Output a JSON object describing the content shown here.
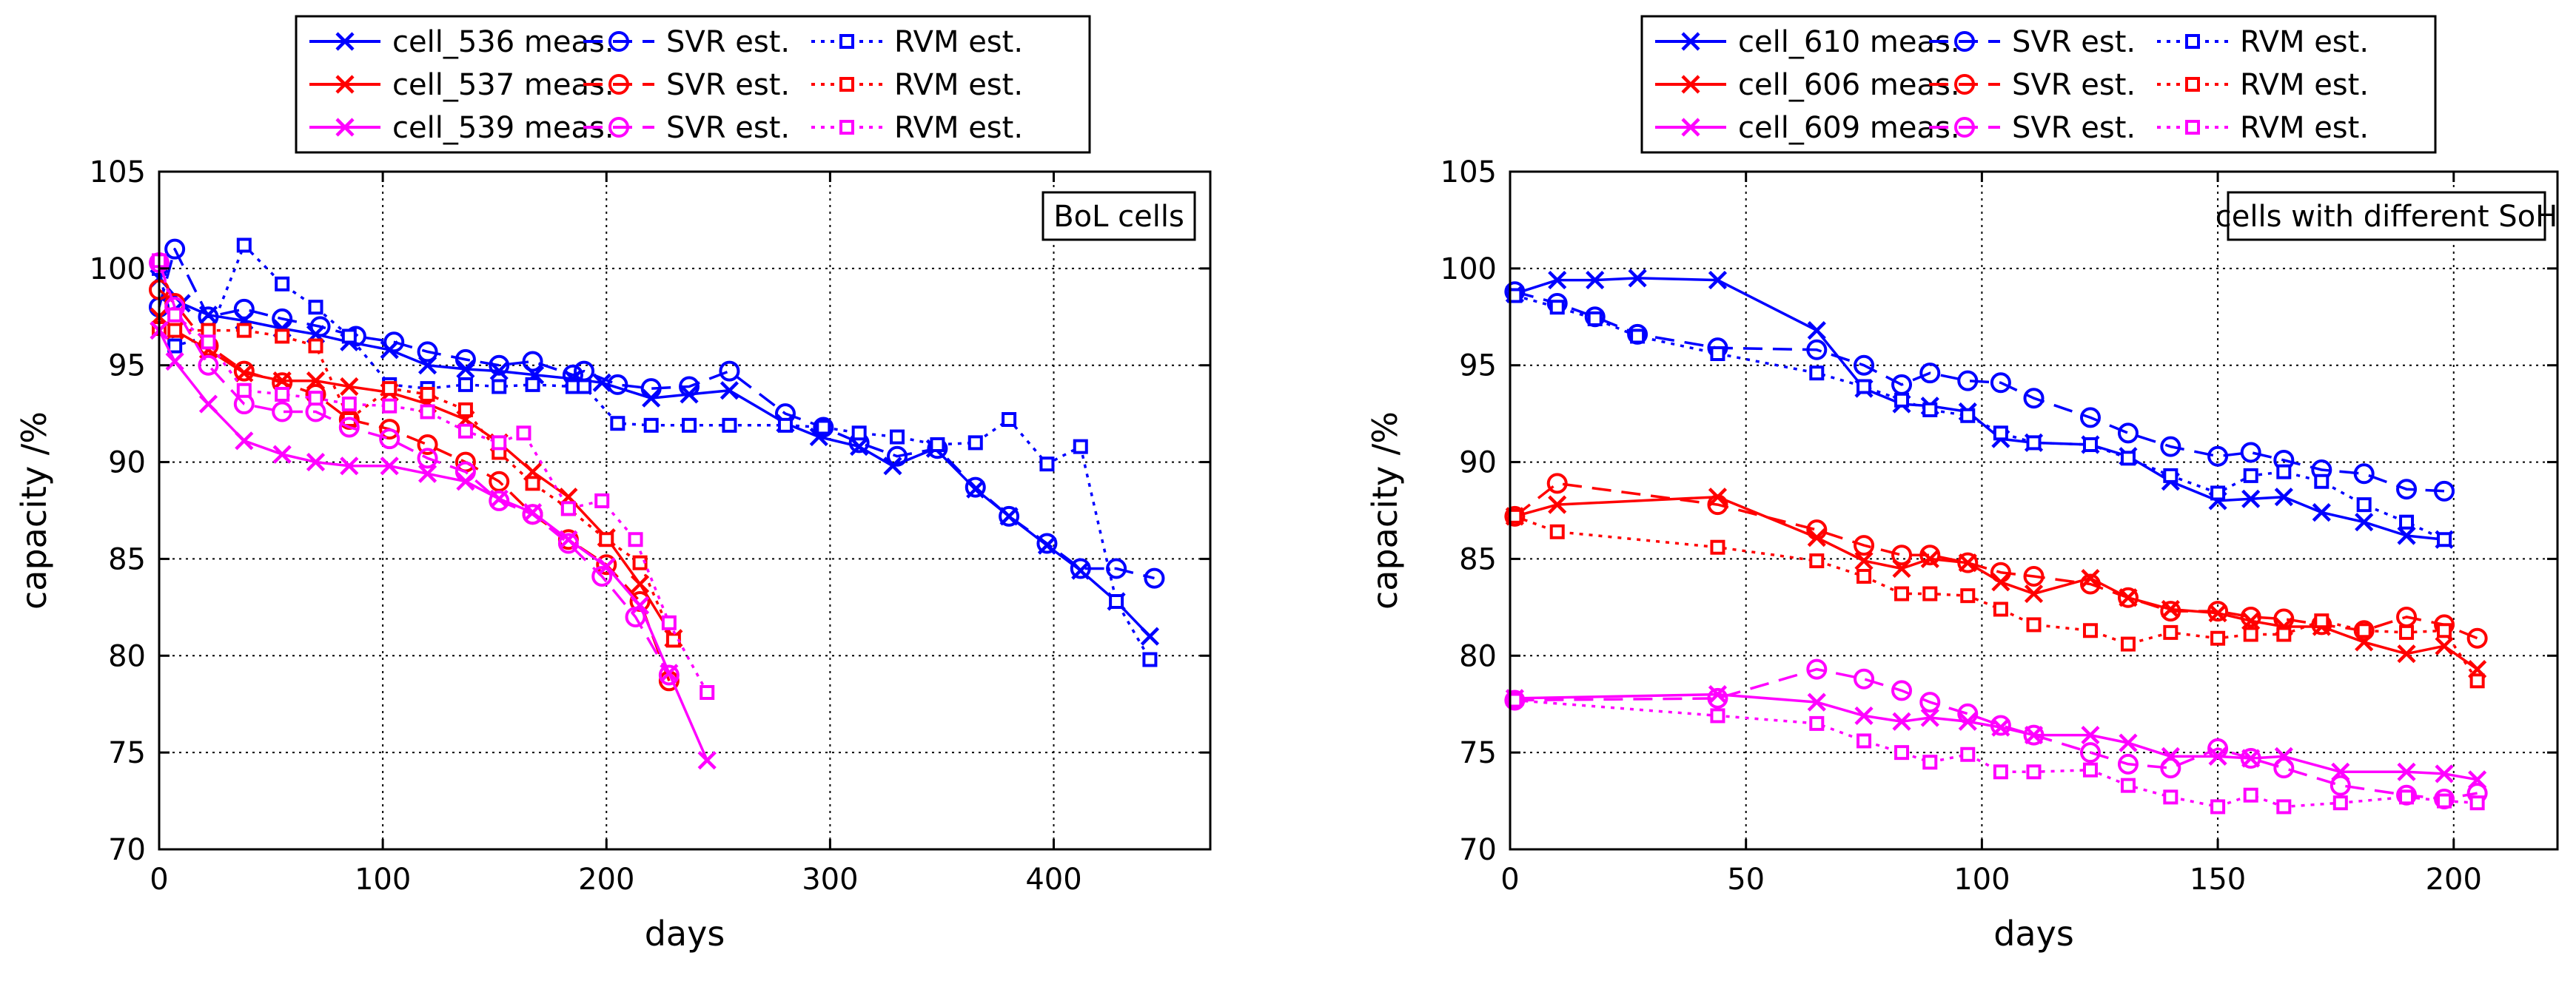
{
  "chart_data": [
    {
      "type": "line",
      "annotation": "BoL cells",
      "xlabel": "days",
      "ylabel": "capacity /%",
      "xlim": [
        0,
        470
      ],
      "ylim": [
        70,
        105
      ],
      "xticks": [
        0,
        100,
        200,
        300,
        400
      ],
      "yticks": [
        70,
        75,
        80,
        85,
        90,
        95,
        100,
        105
      ],
      "grid": true,
      "legend_position": "top",
      "series": [
        {
          "name": "cell_536 meas.",
          "color": "#0000ff",
          "dash": "solid",
          "marker": "x",
          "x": [
            0,
            10,
            22,
            38,
            55,
            70,
            85,
            103,
            120,
            137,
            152,
            168,
            185,
            198,
            220,
            237,
            255,
            280,
            295,
            313,
            328,
            347,
            365,
            380,
            397,
            412,
            428,
            443
          ],
          "y": [
            99.5,
            98.2,
            97.6,
            97.3,
            96.9,
            96.6,
            96.2,
            95.8,
            95.0,
            94.8,
            94.7,
            94.5,
            94.3,
            94.1,
            93.3,
            93.5,
            93.7,
            92.0,
            91.3,
            90.8,
            89.8,
            90.7,
            88.6,
            87.2,
            85.7,
            84.4,
            82.8,
            81.0
          ]
        },
        {
          "name": "SVR est.",
          "color": "#0000ff",
          "dash": "dashed",
          "marker": "o",
          "x": [
            0,
            7,
            22,
            38,
            55,
            72,
            88,
            105,
            120,
            137,
            152,
            167,
            185,
            190,
            205,
            220,
            237,
            255,
            280,
            297,
            313,
            330,
            348,
            365,
            380,
            397,
            412,
            428,
            445
          ],
          "y": [
            98.0,
            101.0,
            97.5,
            97.9,
            97.4,
            97.0,
            96.5,
            96.2,
            95.7,
            95.3,
            95.0,
            95.2,
            94.5,
            94.7,
            94.0,
            93.8,
            93.9,
            94.7,
            92.5,
            91.8,
            91.0,
            90.3,
            90.7,
            88.7,
            87.2,
            85.8,
            84.5,
            84.5,
            84.0
          ]
        },
        {
          "name": "RVM est.",
          "color": "#0000ff",
          "dash": "dotted",
          "marker": "s",
          "x": [
            0,
            7,
            22,
            38,
            55,
            70,
            85,
            103,
            120,
            137,
            152,
            167,
            185,
            190,
            205,
            220,
            237,
            255,
            280,
            297,
            313,
            330,
            348,
            365,
            380,
            397,
            412,
            428,
            443
          ],
          "y": [
            100.0,
            96.0,
            96.5,
            101.2,
            99.2,
            98.0,
            96.5,
            94.0,
            93.8,
            94.0,
            93.9,
            94.0,
            93.9,
            93.9,
            92.0,
            91.9,
            91.9,
            91.9,
            91.9,
            91.8,
            91.5,
            91.3,
            90.9,
            91.0,
            92.2,
            89.9,
            90.8,
            82.8,
            79.8
          ]
        },
        {
          "name": "cell_537 meas.",
          "color": "#ff0000",
          "dash": "solid",
          "marker": "x",
          "x": [
            0,
            7,
            22,
            38,
            55,
            70,
            85,
            103,
            120,
            137,
            152,
            167,
            183,
            200,
            215,
            230
          ],
          "y": [
            97.5,
            96.8,
            95.8,
            94.6,
            94.2,
            94.2,
            93.9,
            93.6,
            93.0,
            92.2,
            91.0,
            89.5,
            88.2,
            86.1,
            83.7,
            80.9
          ]
        },
        {
          "name": "SVR est.",
          "color": "#ff0000",
          "dash": "dashed",
          "marker": "o",
          "x": [
            0,
            7,
            22,
            38,
            55,
            70,
            85,
            103,
            120,
            137,
            152,
            167,
            183,
            200,
            215,
            228
          ],
          "y": [
            98.9,
            98.2,
            96.0,
            94.7,
            94.1,
            93.5,
            92.2,
            91.7,
            90.9,
            90.0,
            89.0,
            87.3,
            86.0,
            84.7,
            82.8,
            78.7
          ]
        },
        {
          "name": "RVM est.",
          "color": "#ff0000",
          "dash": "dotted",
          "marker": "s",
          "x": [
            0,
            7,
            22,
            38,
            55,
            70,
            85,
            103,
            120,
            137,
            152,
            167,
            183,
            200,
            215,
            230
          ],
          "y": [
            96.9,
            96.8,
            96.8,
            96.8,
            96.5,
            96.0,
            92.2,
            93.8,
            93.5,
            92.7,
            90.5,
            88.9,
            87.6,
            86.0,
            84.8,
            80.8
          ]
        },
        {
          "name": "cell_539 meas.",
          "color": "#ff00ff",
          "dash": "solid",
          "marker": "x",
          "x": [
            0,
            7,
            22,
            38,
            55,
            70,
            85,
            103,
            120,
            137,
            152,
            167,
            183,
            200,
            215,
            228,
            245
          ],
          "y": [
            96.8,
            95.2,
            93.0,
            91.1,
            90.4,
            90.0,
            89.8,
            89.8,
            89.4,
            89.0,
            88.1,
            87.4,
            86.0,
            84.6,
            82.6,
            79.1,
            74.6
          ]
        },
        {
          "name": "SVR est.",
          "color": "#ff00ff",
          "dash": "dashed",
          "marker": "o",
          "x": [
            0,
            7,
            22,
            38,
            55,
            70,
            85,
            103,
            120,
            137,
            152,
            167,
            183,
            198,
            213,
            228
          ],
          "y": [
            100.3,
            98.0,
            95.0,
            93.0,
            92.6,
            92.6,
            91.8,
            91.2,
            90.2,
            89.5,
            88.0,
            87.3,
            85.8,
            84.1,
            82.0,
            79.0
          ]
        },
        {
          "name": "RVM est.",
          "color": "#ff00ff",
          "dash": "dotted",
          "marker": "s",
          "x": [
            0,
            7,
            22,
            38,
            55,
            70,
            85,
            103,
            120,
            137,
            152,
            163,
            183,
            198,
            213,
            228,
            245
          ],
          "y": [
            100.4,
            97.6,
            96.2,
            93.7,
            93.5,
            93.3,
            93.0,
            92.9,
            92.6,
            91.6,
            91.0,
            91.5,
            87.6,
            88.0,
            86.0,
            81.7,
            78.1
          ]
        }
      ]
    },
    {
      "type": "line",
      "annotation": "cells with different SoH",
      "xlabel": "days",
      "ylabel": "capacity /%",
      "xlim": [
        0,
        222
      ],
      "ylim": [
        70,
        105
      ],
      "xticks": [
        0,
        50,
        100,
        150,
        200
      ],
      "yticks": [
        70,
        75,
        80,
        85,
        90,
        95,
        100,
        105
      ],
      "grid": true,
      "legend_position": "top",
      "series": [
        {
          "name": "cell_610 meas.",
          "color": "#0000ff",
          "dash": "solid",
          "marker": "x",
          "x": [
            1,
            10,
            18,
            27,
            44,
            65,
            75,
            83,
            89,
            97,
            104,
            111,
            123,
            131,
            140,
            150,
            157,
            164,
            172,
            181,
            190,
            198
          ],
          "y": [
            98.7,
            99.4,
            99.4,
            99.5,
            99.4,
            96.8,
            93.8,
            93.0,
            92.9,
            92.6,
            91.2,
            91.0,
            90.9,
            90.3,
            89.0,
            88.0,
            88.1,
            88.2,
            87.4,
            86.9,
            86.2,
            86.0
          ]
        },
        {
          "name": "SVR est.",
          "color": "#0000ff",
          "dash": "dashed",
          "marker": "o",
          "x": [
            1,
            10,
            18,
            27,
            44,
            65,
            75,
            83,
            89,
            97,
            104,
            111,
            123,
            131,
            140,
            150,
            157,
            164,
            172,
            181,
            190,
            198
          ],
          "y": [
            98.8,
            98.2,
            97.5,
            96.6,
            95.9,
            95.8,
            95.0,
            94.0,
            94.6,
            94.2,
            94.1,
            93.3,
            92.3,
            91.5,
            90.8,
            90.3,
            90.5,
            90.1,
            89.6,
            89.4,
            88.6,
            88.5
          ]
        },
        {
          "name": "RVM est.",
          "color": "#0000ff",
          "dash": "dotted",
          "marker": "s",
          "x": [
            1,
            10,
            18,
            27,
            44,
            65,
            75,
            83,
            89,
            97,
            104,
            111,
            123,
            131,
            140,
            150,
            157,
            164,
            172,
            181,
            190,
            198
          ],
          "y": [
            98.6,
            98.0,
            97.4,
            96.5,
            95.6,
            94.6,
            93.9,
            93.2,
            92.7,
            92.4,
            91.5,
            91.0,
            90.9,
            90.2,
            89.3,
            88.4,
            89.3,
            89.5,
            89.0,
            87.8,
            86.9,
            86.0
          ]
        },
        {
          "name": "cell_606 meas.",
          "color": "#ff0000",
          "dash": "solid",
          "marker": "x",
          "x": [
            1,
            10,
            44,
            65,
            75,
            83,
            89,
            97,
            104,
            111,
            123,
            131,
            140,
            150,
            157,
            164,
            172,
            181,
            190,
            198,
            205
          ],
          "y": [
            87.2,
            87.8,
            88.2,
            86.1,
            84.9,
            84.5,
            85.0,
            84.8,
            83.8,
            83.2,
            84.0,
            83.0,
            82.4,
            82.2,
            81.8,
            81.5,
            81.5,
            80.7,
            80.1,
            80.5,
            79.3
          ]
        },
        {
          "name": "SVR est.",
          "color": "#ff0000",
          "dash": "dashed",
          "marker": "o",
          "x": [
            1,
            10,
            44,
            65,
            75,
            83,
            89,
            97,
            104,
            111,
            123,
            131,
            140,
            150,
            157,
            164,
            172,
            181,
            190,
            198,
            205
          ],
          "y": [
            87.2,
            88.9,
            87.8,
            86.5,
            85.7,
            85.2,
            85.2,
            84.8,
            84.3,
            84.1,
            83.7,
            83.0,
            82.3,
            82.3,
            82.0,
            81.9,
            81.6,
            81.3,
            82.0,
            81.6,
            80.9
          ]
        },
        {
          "name": "RVM est.",
          "color": "#ff0000",
          "dash": "dotted",
          "marker": "s",
          "x": [
            1,
            10,
            44,
            65,
            75,
            83,
            89,
            97,
            104,
            111,
            123,
            131,
            140,
            150,
            157,
            164,
            172,
            181,
            190,
            198,
            205
          ],
          "y": [
            87.2,
            86.4,
            85.6,
            84.9,
            84.1,
            83.2,
            83.2,
            83.1,
            82.4,
            81.6,
            81.3,
            80.6,
            81.2,
            80.9,
            81.1,
            81.1,
            81.8,
            81.3,
            81.2,
            81.3,
            78.7
          ]
        },
        {
          "name": "cell_609 meas.",
          "color": "#ff00ff",
          "dash": "solid",
          "marker": "x",
          "x": [
            1,
            44,
            65,
            75,
            83,
            89,
            97,
            104,
            111,
            123,
            131,
            140,
            150,
            157,
            164,
            176,
            190,
            198,
            205
          ],
          "y": [
            77.8,
            78.0,
            77.6,
            76.9,
            76.6,
            76.8,
            76.6,
            76.3,
            75.9,
            75.9,
            75.5,
            74.8,
            74.8,
            74.7,
            74.8,
            74.0,
            74.0,
            73.9,
            73.6
          ]
        },
        {
          "name": "SVR est.",
          "color": "#ff00ff",
          "dash": "dashed",
          "marker": "o",
          "x": [
            1,
            44,
            65,
            75,
            83,
            89,
            97,
            104,
            111,
            123,
            131,
            140,
            150,
            157,
            164,
            176,
            190,
            198,
            205
          ],
          "y": [
            77.7,
            77.8,
            79.3,
            78.8,
            78.2,
            77.6,
            77.0,
            76.4,
            75.9,
            75.0,
            74.4,
            74.2,
            75.2,
            74.7,
            74.2,
            73.3,
            72.8,
            72.6,
            72.9
          ]
        },
        {
          "name": "RVM est.",
          "color": "#ff00ff",
          "dash": "dotted",
          "marker": "s",
          "x": [
            1,
            44,
            65,
            75,
            83,
            89,
            97,
            104,
            111,
            123,
            131,
            140,
            150,
            157,
            164,
            176,
            190,
            198,
            205
          ],
          "y": [
            77.7,
            76.9,
            76.5,
            75.6,
            75.0,
            74.5,
            74.9,
            74.0,
            74.0,
            74.1,
            73.3,
            72.7,
            72.2,
            72.8,
            72.2,
            72.4,
            72.7,
            72.5,
            72.4
          ]
        }
      ]
    }
  ]
}
